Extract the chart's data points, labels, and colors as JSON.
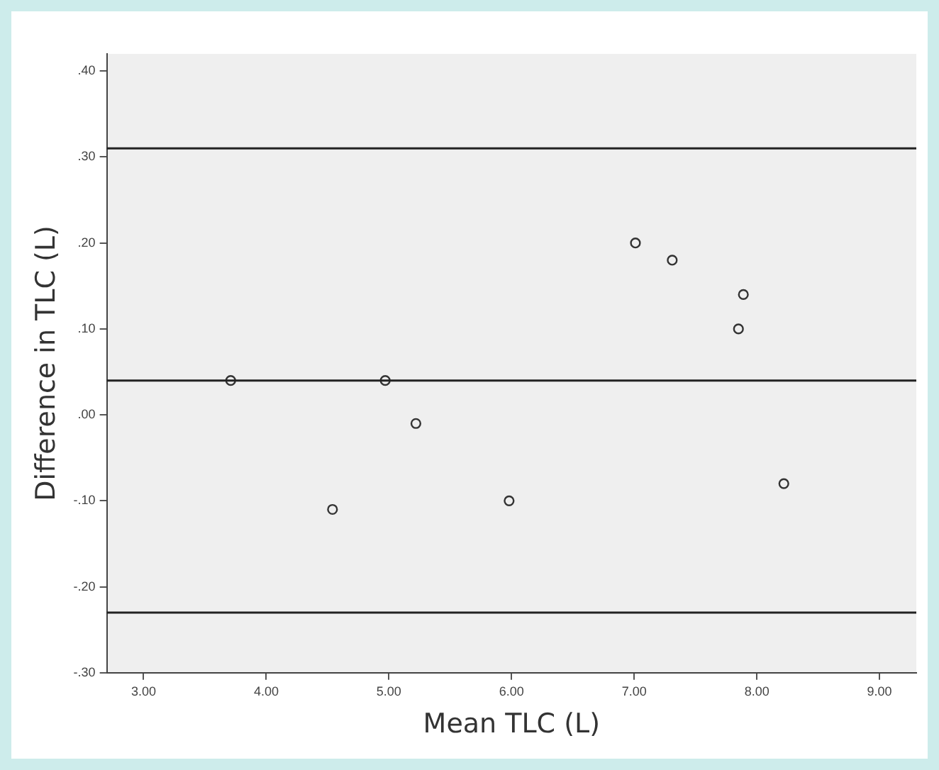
{
  "chart_data": {
    "type": "scatter",
    "xlabel": "Mean TLC (L)",
    "ylabel": "Difference in TLC (L)",
    "x": [
      3.71,
      4.97,
      5.22,
      4.54,
      5.98,
      7.01,
      7.31,
      7.89,
      7.85,
      8.22
    ],
    "series": [
      {
        "color": "#333333",
        "values": [
          0.04,
          0.04,
          -0.01,
          -0.11,
          -0.1,
          0.2,
          0.18,
          0.14,
          0.1,
          -0.08
        ]
      }
    ],
    "marker": "circle",
    "grid": false,
    "legend": false,
    "xlim": [
      2.7,
      9.3
    ],
    "ylim": [
      -0.3,
      0.42
    ],
    "xticks": [
      {
        "value": 3,
        "label": "3.00"
      },
      {
        "value": 4,
        "label": "4.00"
      },
      {
        "value": 5,
        "label": "5.00"
      },
      {
        "value": 6,
        "label": "6.00"
      },
      {
        "value": 7,
        "label": "7.00"
      },
      {
        "value": 8,
        "label": "8.00"
      },
      {
        "value": 9,
        "label": "9.00"
      }
    ],
    "yticks": [
      {
        "value": -0.3,
        "label": "-.30"
      },
      {
        "value": -0.2,
        "label": "-.20"
      },
      {
        "value": -0.1,
        "label": "-.10"
      },
      {
        "value": 0,
        "label": ".00"
      },
      {
        "value": 0.1,
        "label": ".10"
      },
      {
        "value": 0.2,
        "label": ".20"
      },
      {
        "value": 0.3,
        "label": ".30"
      },
      {
        "value": 0.4,
        "label": ".40"
      }
    ],
    "ref_lines": [
      {
        "axis": "y",
        "value": 0.31,
        "color": "#222222"
      },
      {
        "axis": "y",
        "value": 0.04,
        "color": "#222222"
      },
      {
        "axis": "y",
        "value": -0.23,
        "color": "#222222"
      }
    ]
  }
}
